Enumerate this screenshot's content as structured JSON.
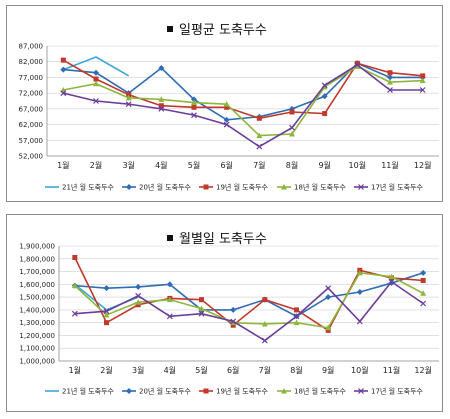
{
  "colors": {
    "s21": "#3aa8d4",
    "s20": "#2e6db3",
    "s19": "#c0392b",
    "s18": "#8db63c",
    "s17": "#6a3d9a",
    "grid": "#cfcfcf",
    "axis": "#8c8c8c"
  },
  "chart_data": [
    {
      "type": "line",
      "title": "일평균 도축두수",
      "categories": [
        "1월",
        "2월",
        "3월",
        "4월",
        "5월",
        "6월",
        "7월",
        "8월",
        "9월",
        "10월",
        "11월",
        "12월"
      ],
      "ylim": [
        52000,
        87000
      ],
      "yticks": [
        52000,
        57000,
        62000,
        67000,
        72000,
        77000,
        82000,
        87000
      ],
      "ytick_labels": [
        "52,000",
        "57,000",
        "62,000",
        "67,000",
        "72,000",
        "77,000",
        "82,000",
        "87,000"
      ],
      "grid": true,
      "legend_position": "bottom",
      "series": [
        {
          "name": "21년 월 도축두수",
          "color_key": "s21",
          "marker": "none",
          "values": [
            79500,
            83500,
            77500,
            null,
            null,
            null,
            null,
            null,
            null,
            null,
            null,
            null
          ]
        },
        {
          "name": "20년 월 도축두수",
          "color_key": "s20",
          "marker": "diamond",
          "values": [
            79500,
            78500,
            72000,
            80000,
            70000,
            63500,
            64500,
            67000,
            71000,
            81500,
            77000,
            77000
          ]
        },
        {
          "name": "19년 월 도축두수",
          "color_key": "s19",
          "marker": "square",
          "values": [
            82500,
            76500,
            71500,
            68000,
            67500,
            67500,
            64000,
            66000,
            65500,
            81500,
            78500,
            77500
          ]
        },
        {
          "name": "18년 월 도축두수",
          "color_key": "s18",
          "marker": "triangle",
          "values": [
            73000,
            75000,
            70500,
            70000,
            69000,
            68500,
            58500,
            59000,
            74000,
            80500,
            75500,
            76000
          ]
        },
        {
          "name": "17년 월 도축두수",
          "color_key": "s17",
          "marker": "x",
          "values": [
            72000,
            69500,
            68500,
            67000,
            65000,
            62000,
            55000,
            61000,
            74500,
            81000,
            73000,
            73000
          ]
        }
      ]
    },
    {
      "type": "line",
      "title": "월별일 도축두수",
      "categories": [
        "1월",
        "2월",
        "3월",
        "4월",
        "5월",
        "6월",
        "7월",
        "8월",
        "9월",
        "10월",
        "11월",
        "12월"
      ],
      "ylim": [
        1000000,
        1900000
      ],
      "yticks": [
        1000000,
        1100000,
        1200000,
        1300000,
        1400000,
        1500000,
        1600000,
        1700000,
        1800000,
        1900000
      ],
      "ytick_labels": [
        "1,000,000",
        "1,100,000",
        "1,200,000",
        "1,300,000",
        "1,400,000",
        "1,500,000",
        "1,600,000",
        "1,700,000",
        "1,800,000",
        "1,900,000"
      ],
      "grid": true,
      "legend_position": "bottom",
      "series": [
        {
          "name": "21년 월 도축두수",
          "color_key": "s21",
          "marker": "none",
          "values": [
            1600000,
            1400000,
            1500000,
            null,
            null,
            null,
            null,
            null,
            null,
            null,
            null,
            null
          ]
        },
        {
          "name": "20년 월 도축두수",
          "color_key": "s20",
          "marker": "diamond",
          "values": [
            1590000,
            1570000,
            1580000,
            1600000,
            1400000,
            1400000,
            1480000,
            1350000,
            1500000,
            1540000,
            1610000,
            1690000
          ]
        },
        {
          "name": "19년 월 도축두수",
          "color_key": "s19",
          "marker": "square",
          "values": [
            1810000,
            1300000,
            1440000,
            1490000,
            1480000,
            1280000,
            1480000,
            1400000,
            1240000,
            1710000,
            1650000,
            1630000
          ]
        },
        {
          "name": "18년 월 도축두수",
          "color_key": "s18",
          "marker": "triangle",
          "values": [
            1590000,
            1360000,
            1460000,
            1480000,
            1410000,
            1300000,
            1290000,
            1300000,
            1260000,
            1690000,
            1660000,
            1530000
          ]
        },
        {
          "name": "17년 월 도축두수",
          "color_key": "s17",
          "marker": "x",
          "values": [
            1370000,
            1390000,
            1510000,
            1350000,
            1370000,
            1310000,
            1160000,
            1350000,
            1570000,
            1310000,
            1620000,
            1450000
          ]
        }
      ]
    }
  ]
}
